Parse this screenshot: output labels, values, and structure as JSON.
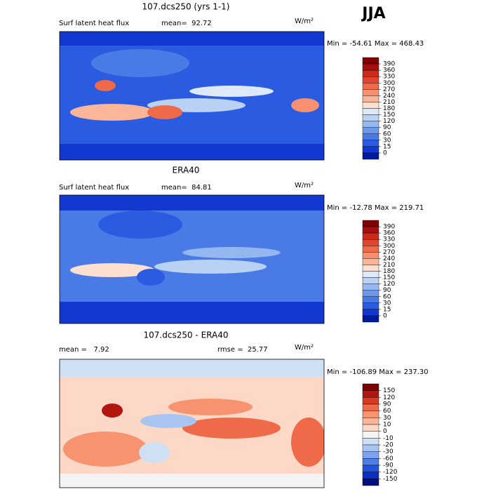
{
  "season": "JJA",
  "panels": [
    {
      "title": "107.dcs250 (yrs 1-1)",
      "subtitle": "Surf latent heat flux",
      "stat1": "mean=  92.72",
      "stat2": null,
      "units": "W/m²",
      "range": "Min = -54.61 Max = 468.43",
      "colorbar": {
        "labels": [
          390,
          360,
          330,
          300,
          270,
          240,
          210,
          180,
          150,
          120,
          90,
          60,
          30,
          15,
          0
        ],
        "colors": [
          "#7f0000",
          "#a50f0f",
          "#cc2a1a",
          "#e0452e",
          "#ef6a48",
          "#f79070",
          "#fbb599",
          "#fde0cf",
          "#dde9f7",
          "#b9d2f3",
          "#95b7ef",
          "#6f98ea",
          "#4a7ae6",
          "#2b5be0",
          "#1238cf",
          "#001a9e"
        ]
      }
    },
    {
      "title": "ERA40",
      "subtitle": "Surf latent heat flux",
      "stat1": "mean=  84.81",
      "stat2": null,
      "units": "W/m²",
      "range": "Min = -12.78 Max = 219.71",
      "colorbar": {
        "labels": [
          390,
          360,
          330,
          300,
          270,
          240,
          210,
          180,
          150,
          120,
          90,
          60,
          30,
          15,
          0
        ],
        "colors": [
          "#7f0000",
          "#a50f0f",
          "#cc2a1a",
          "#e0452e",
          "#ef6a48",
          "#f79070",
          "#fbb599",
          "#fde0cf",
          "#dde9f7",
          "#b9d2f3",
          "#95b7ef",
          "#6f98ea",
          "#4a7ae6",
          "#2b5be0",
          "#1238cf",
          "#001a9e"
        ]
      }
    },
    {
      "title": "107.dcs250 - ERA40",
      "subtitle": null,
      "stat1": "mean =   7.92",
      "stat2": "rmse =  25.77",
      "units": "W/m²",
      "range": "Min = -106.89 Max = 237.30",
      "colorbar": {
        "labels": [
          150,
          120,
          90,
          60,
          30,
          10,
          0,
          -10,
          -20,
          -30,
          -60,
          -90,
          -120,
          -150
        ],
        "colors": [
          "#7f0000",
          "#b2160e",
          "#d93a22",
          "#ef6a48",
          "#f7936f",
          "#fbb599",
          "#fdd8c6",
          "#f4f4f4",
          "#cfe0f5",
          "#a8c4f1",
          "#7ea3ec",
          "#4f7de6",
          "#2454dc",
          "#0b2fc0",
          "#000f80"
        ]
      }
    }
  ]
}
